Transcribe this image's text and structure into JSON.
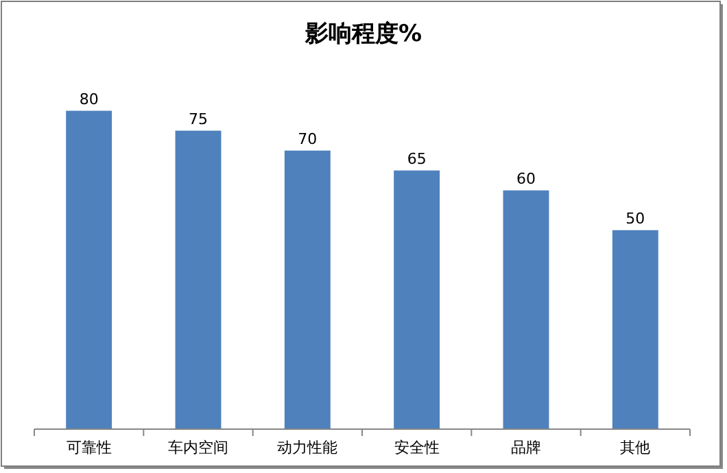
{
  "chart_data": {
    "type": "bar",
    "title": "影响程度%",
    "categories": [
      "可靠性",
      "车内空间",
      "动力性能",
      "安全性",
      "品牌",
      "其他"
    ],
    "values": [
      80,
      75,
      70,
      65,
      60,
      50
    ],
    "color": "#4f81bd",
    "data_labels": true
  }
}
